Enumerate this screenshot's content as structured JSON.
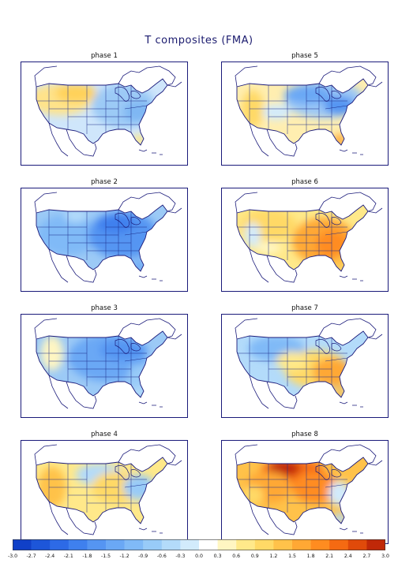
{
  "title": "T composites (FMA)",
  "panels": [
    {
      "label": "phase 1",
      "pattern": "p1"
    },
    {
      "label": "phase 5",
      "pattern": "p5"
    },
    {
      "label": "phase 2",
      "pattern": "p2"
    },
    {
      "label": "phase 6",
      "pattern": "p6"
    },
    {
      "label": "phase 3",
      "pattern": "p3"
    },
    {
      "label": "phase 7",
      "pattern": "p7"
    },
    {
      "label": "phase 4",
      "pattern": "p4"
    },
    {
      "label": "phase 8",
      "pattern": "p8"
    }
  ],
  "colorbar": {
    "ticks": [
      "-3.0",
      "-2.7",
      "-2.4",
      "-2.1",
      "-1.8",
      "-1.5",
      "-1.2",
      "-0.9",
      "-0.6",
      "-0.3",
      "0.0",
      "0.3",
      "0.6",
      "0.9",
      "1.2",
      "1.5",
      "1.8",
      "2.1",
      "2.4",
      "2.7",
      "3.0"
    ],
    "colors": [
      "#1040c8",
      "#1d56d9",
      "#2d6ae6",
      "#3f80ee",
      "#5595f2",
      "#6aa8f5",
      "#80baf7",
      "#98cbf8",
      "#b3dbfa",
      "#d2ebfc",
      "#ffffff",
      "#fff6c2",
      "#ffe98a",
      "#ffd966",
      "#ffc24a",
      "#ffa834",
      "#ff8c20",
      "#f56a12",
      "#e04a0a",
      "#c02808"
    ]
  }
}
